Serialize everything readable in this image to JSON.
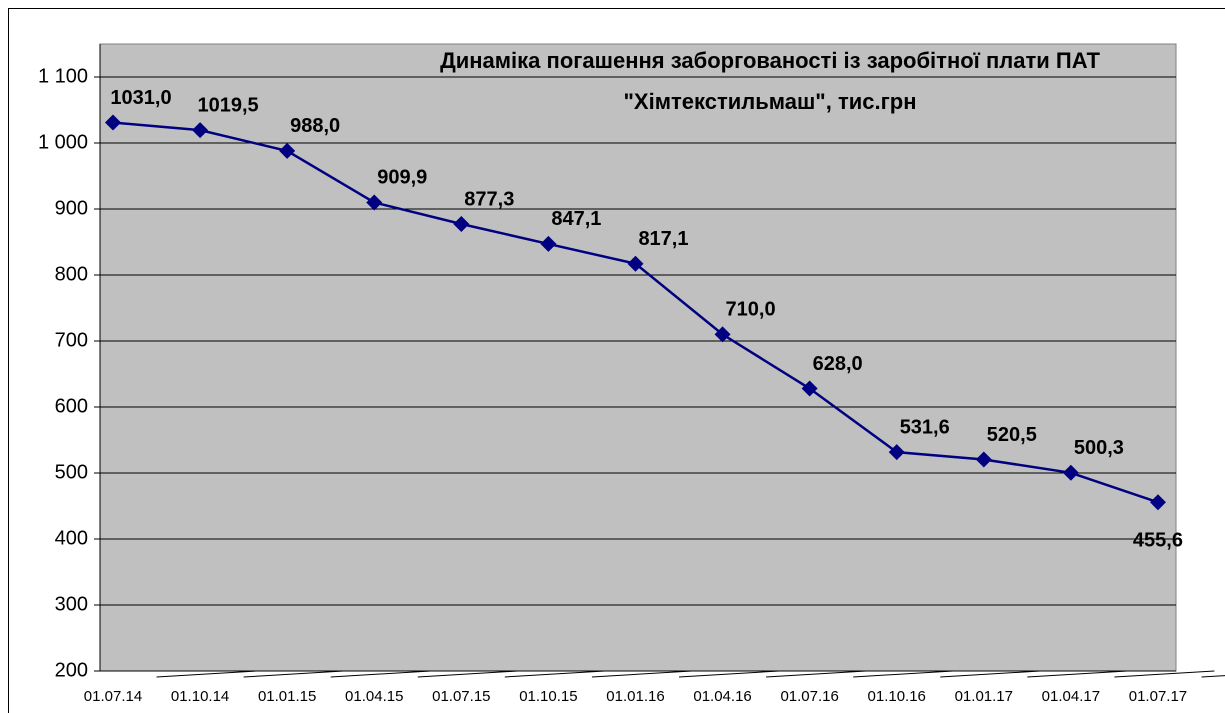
{
  "chart_data": {
    "type": "line",
    "title": [
      "Динаміка погашення заборгованості  із заробітної плати ПАТ",
      "\"Хімтекстильмаш\", тис.грн"
    ],
    "categories": [
      "01.07.14",
      "01.10.14",
      "01.01.15",
      "01.04.15",
      "01.07.15",
      "01.10.15",
      "01.01.16",
      "01.04.16",
      "01.07.16",
      "01.10.16",
      "01.01.17",
      "01.04.17",
      "01.07.17"
    ],
    "series": [
      {
        "name": null,
        "color": "#000080",
        "values": [
          1031.0,
          1019.5,
          988.0,
          909.9,
          877.3,
          847.1,
          817.1,
          710.0,
          628.0,
          531.6,
          520.5,
          500.3,
          455.6
        ],
        "value_labels": [
          "1031,0",
          "1019,5",
          "988,0",
          "909,9",
          "877,3",
          "847,1",
          "817,1",
          "710,0",
          "628,0",
          "531,6",
          "520,5",
          "500,3",
          "455,6"
        ]
      }
    ],
    "ylim": [
      200,
      1150
    ],
    "yticks": [
      200,
      300,
      400,
      500,
      600,
      700,
      800,
      900,
      {
        "value": 1000,
        "label": "1 000"
      },
      {
        "value": 1100,
        "label": "1 100"
      }
    ],
    "grid": true
  }
}
